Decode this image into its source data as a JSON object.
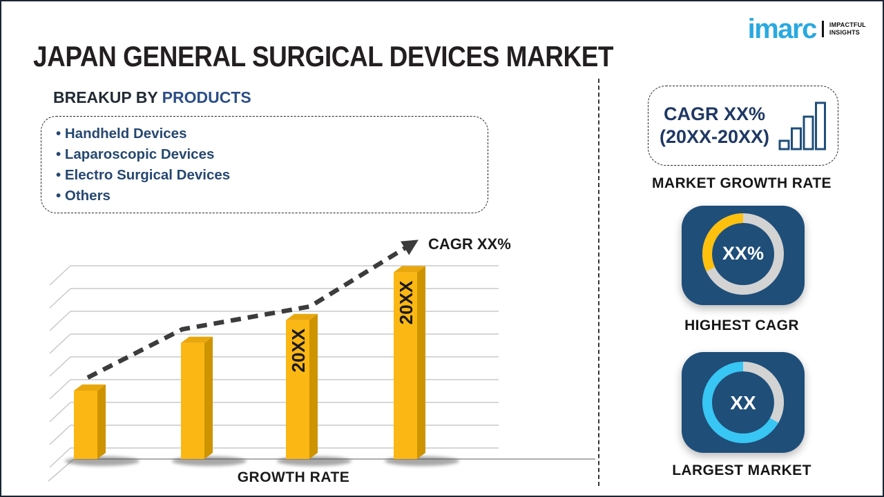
{
  "page": {
    "title": "JAPAN GENERAL SURGICAL DEVICES MARKET"
  },
  "logo": {
    "brand": "imarc",
    "tagline_line1": "IMPACTFUL",
    "tagline_line2": "INSIGHTS",
    "brand_color": "#29A9E0"
  },
  "breakup": {
    "heading_prefix": "BREAKUP BY ",
    "heading_highlight": "PRODUCTS",
    "items": [
      "Handheld Devices",
      "Laparoscopic Devices",
      "Electro Surgical Devices",
      "Others"
    ]
  },
  "chart_data": {
    "type": "bar",
    "title": "",
    "xlabel": "GROWTH RATE",
    "ylabel": "",
    "categories": [
      "",
      "",
      "20XX",
      "20XX"
    ],
    "values": [
      3.0,
      5.1,
      6.1,
      8.2
    ],
    "ylim": [
      0,
      9
    ],
    "gridlines": 9,
    "annotation": "CAGR XX%",
    "trend_line": {
      "style": "dashed-arrow",
      "x": [
        70,
        207,
        392,
        543
      ],
      "y": [
        215,
        145,
        112,
        19
      ]
    },
    "colors": {
      "bar_front": "#FBB713",
      "bar_side": "#CE9300",
      "bar_top": "#E9A70E",
      "trend": "#3C3C3C",
      "gridline": "#C8C8C8",
      "baseline": "#ADADAD",
      "bar_label": "#1a1a1a"
    }
  },
  "right_panel": {
    "cagr_box": {
      "line1": "CAGR XX%",
      "line2": "(20XX-20XX)",
      "icon": "ascending-bars",
      "icon_color": "#1F4E79"
    },
    "market_growth_rate_label": "MARKET GROWTH RATE",
    "highest_cagr": {
      "value": "XX%",
      "label": "HIGHEST CAGR",
      "tile_color": "#1F4E79",
      "base_color": "#D3D3D3",
      "segment_color": "#FFC10D",
      "segment_start_deg": 245,
      "segment_end_deg": 360
    },
    "largest_market": {
      "value": "XX",
      "label": "LARGEST MARKET",
      "tile_color": "#1F4E79",
      "base_color": "#38C6F4",
      "segment_color": "#D3D3D3",
      "segment_start_deg": 0,
      "segment_end_deg": 120
    }
  }
}
